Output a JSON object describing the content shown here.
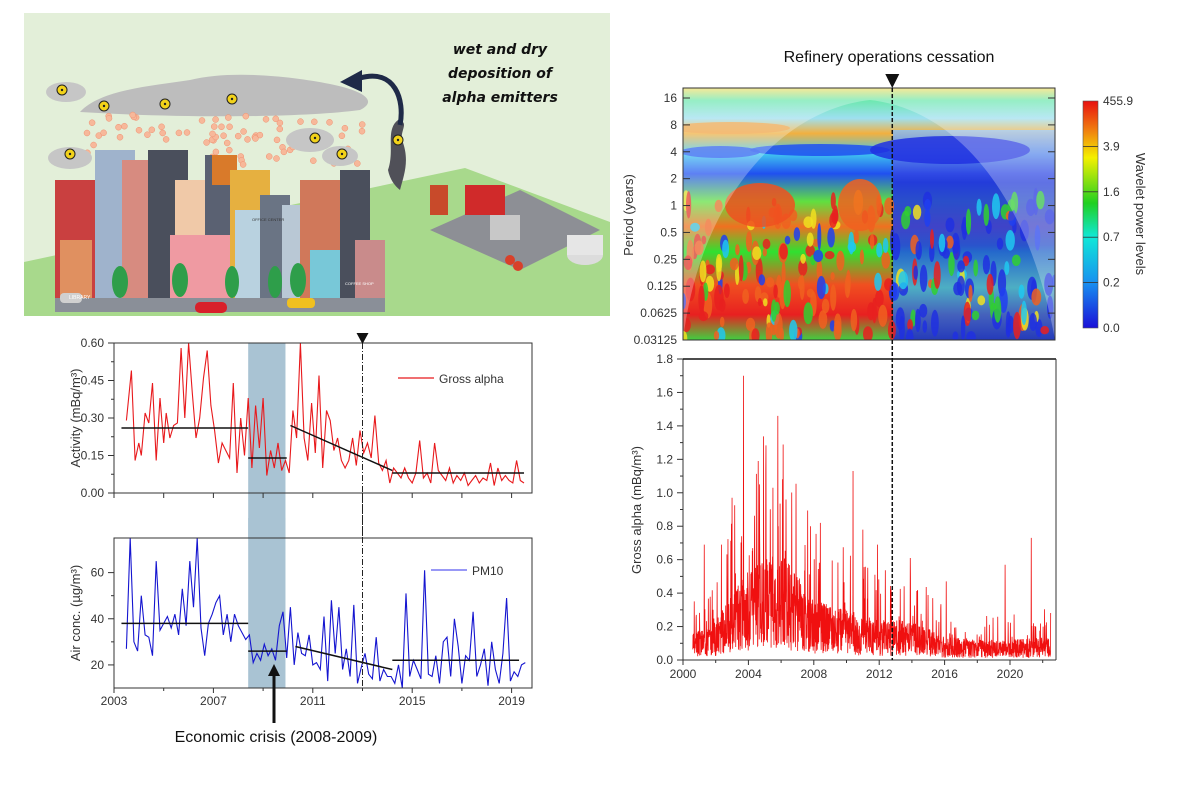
{
  "illustration": {
    "caption_lines": [
      "wet and dry",
      "deposition of",
      "alpha emitters"
    ],
    "sign_labels": [
      "LIBRARY",
      "OFFICE CENTER",
      "COFFEE SHOP"
    ]
  },
  "annotations": {
    "economic_crisis": "Economic crisis (2008-2009)",
    "refinery": "Refinery operations cessation"
  },
  "chart_data": [
    {
      "id": "gross-alpha-monthly",
      "type": "line",
      "title": "",
      "xlabel": "",
      "ylabel": "Activity (mBq/m³)",
      "xlim": [
        2003,
        2019.8
      ],
      "ylim": [
        0,
        0.6
      ],
      "yticks": [
        "0.00",
        "0.15",
        "0.30",
        "0.45",
        "0.60"
      ],
      "ytick_values": [
        0,
        0.15,
        0.3,
        0.45,
        0.6
      ],
      "xticks_shown": false,
      "xtick_values": [
        2003,
        2005,
        2007,
        2009,
        2011,
        2013,
        2015,
        2017,
        2019
      ],
      "legend": {
        "label": "Gross alpha",
        "placement": "top-right"
      },
      "color": "#e8191c",
      "series": [
        {
          "name": "Gross alpha",
          "x": [
            2003.5,
            2003.7,
            2003.85,
            2004.0,
            2004.1,
            2004.25,
            2004.4,
            2004.55,
            2004.7,
            2004.85,
            2005.0,
            2005.1,
            2005.25,
            2005.4,
            2005.55,
            2005.7,
            2005.85,
            2006.0,
            2006.15,
            2006.3,
            2006.45,
            2006.6,
            2006.75,
            2006.9,
            2007.05,
            2007.2,
            2007.35,
            2007.5,
            2007.65,
            2007.8,
            2007.95,
            2008.1,
            2008.25,
            2008.4,
            2008.55,
            2008.7,
            2008.85,
            2009.0,
            2009.15,
            2009.3,
            2009.45,
            2009.6,
            2009.75,
            2009.9,
            2010.05,
            2010.2,
            2010.35,
            2010.5,
            2010.65,
            2010.8,
            2010.95,
            2011.1,
            2011.25,
            2011.4,
            2011.55,
            2011.7,
            2011.85,
            2012.0,
            2012.15,
            2012.3,
            2012.45,
            2012.6,
            2012.75,
            2012.9,
            2013.05,
            2013.2,
            2013.35,
            2013.5,
            2013.65,
            2013.8,
            2013.95,
            2014.1,
            2014.25,
            2014.4,
            2014.55,
            2014.7,
            2014.85,
            2015.0,
            2015.15,
            2015.3,
            2015.45,
            2015.6,
            2015.75,
            2015.9,
            2016.05,
            2016.2,
            2016.35,
            2016.5,
            2016.65,
            2016.8,
            2016.95,
            2017.1,
            2017.25,
            2017.4,
            2017.55,
            2017.7,
            2017.85,
            2018.0,
            2018.15,
            2018.3,
            2018.45,
            2018.6,
            2018.75,
            2018.9,
            2019.05,
            2019.2,
            2019.35,
            2019.5
          ],
          "values": [
            0.29,
            0.49,
            0.13,
            0.2,
            0.15,
            0.32,
            0.28,
            0.44,
            0.13,
            0.38,
            0.2,
            0.32,
            0.22,
            0.27,
            0.28,
            0.58,
            0.3,
            0.6,
            0.4,
            0.22,
            0.3,
            0.46,
            0.57,
            0.35,
            0.25,
            0.12,
            0.2,
            0.17,
            0.14,
            0.44,
            0.08,
            0.3,
            0.15,
            0.38,
            0.1,
            0.35,
            0.18,
            0.38,
            0.07,
            0.17,
            0.1,
            0.2,
            0.09,
            0.13,
            0.08,
            0.33,
            0.22,
            0.6,
            0.22,
            0.13,
            0.36,
            0.16,
            0.47,
            0.1,
            0.33,
            0.29,
            0.17,
            0.22,
            0.13,
            0.1,
            0.13,
            0.22,
            0.11,
            0.25,
            0.16,
            0.2,
            0.14,
            0.31,
            0.12,
            0.09,
            0.13,
            0.04,
            0.1,
            0.08,
            0.06,
            0.1,
            0.06,
            0.04,
            0.08,
            0.21,
            0.06,
            0.08,
            0.04,
            0.2,
            0.09,
            0.07,
            0.05,
            0.1,
            0.04,
            0.07,
            0.05,
            0.08,
            0.03,
            0.05,
            0.07,
            0.04,
            0.06,
            0.05,
            0.12,
            0.03,
            0.1,
            0.05,
            0.07,
            0.05,
            0.04,
            0.13,
            0.05,
            0.04
          ]
        }
      ],
      "trend_lines": [
        {
          "x": [
            2003.3,
            2008.4
          ],
          "y": [
            0.26,
            0.26
          ]
        },
        {
          "x": [
            2008.4,
            2009.95
          ],
          "y": [
            0.14,
            0.14
          ]
        },
        {
          "x": [
            2010.1,
            2014.2
          ],
          "y": [
            0.27,
            0.09
          ]
        },
        {
          "x": [
            2014.2,
            2019.5
          ],
          "y": [
            0.08,
            0.08
          ]
        }
      ],
      "shaded_band": {
        "x": [
          2008.4,
          2009.9
        ],
        "color": "#a9c3d3"
      },
      "event_line": {
        "x": 2013.0,
        "style": "dash-dot",
        "marker": "down-triangle"
      }
    },
    {
      "id": "pm10-monthly",
      "type": "line",
      "title": "",
      "xlabel": "",
      "ylabel": "Air conc. (µg/m³)",
      "xlim": [
        2003,
        2019.8
      ],
      "ylim": [
        10,
        75
      ],
      "yticks": [
        "20",
        "40",
        "60"
      ],
      "ytick_values": [
        20,
        40,
        60
      ],
      "xticks": [
        "2003",
        "2007",
        "2011",
        "2015",
        "2019"
      ],
      "xtick_values": [
        2003,
        2007,
        2011,
        2015,
        2019
      ],
      "legend": {
        "label": "PM10",
        "placement": "top-right"
      },
      "color": "#1515d0",
      "series": [
        {
          "name": "PM10",
          "x": [
            2003.5,
            2003.65,
            2003.8,
            2003.95,
            2004.1,
            2004.25,
            2004.4,
            2004.55,
            2004.7,
            2004.85,
            2005.0,
            2005.15,
            2005.3,
            2005.45,
            2005.6,
            2005.75,
            2005.9,
            2006.05,
            2006.2,
            2006.35,
            2006.5,
            2006.65,
            2006.8,
            2006.95,
            2007.1,
            2007.25,
            2007.4,
            2007.55,
            2007.7,
            2007.85,
            2008.0,
            2008.15,
            2008.3,
            2008.45,
            2008.6,
            2008.75,
            2008.9,
            2009.05,
            2009.2,
            2009.35,
            2009.5,
            2009.65,
            2009.8,
            2009.95,
            2010.1,
            2010.25,
            2010.4,
            2010.55,
            2010.7,
            2010.85,
            2011.0,
            2011.15,
            2011.3,
            2011.45,
            2011.6,
            2011.75,
            2011.9,
            2012.05,
            2012.2,
            2012.35,
            2012.5,
            2012.65,
            2012.8,
            2012.95,
            2013.1,
            2013.25,
            2013.4,
            2013.55,
            2013.7,
            2013.85,
            2014.0,
            2014.15,
            2014.3,
            2014.45,
            2014.6,
            2014.75,
            2014.9,
            2015.05,
            2015.2,
            2015.35,
            2015.5,
            2015.65,
            2015.8,
            2015.95,
            2016.1,
            2016.25,
            2016.4,
            2016.55,
            2016.7,
            2016.85,
            2017.0,
            2017.15,
            2017.3,
            2017.45,
            2017.6,
            2017.75,
            2017.9,
            2018.05,
            2018.2,
            2018.35,
            2018.5,
            2018.65,
            2018.8,
            2018.95,
            2019.1,
            2019.25,
            2019.4,
            2019.55
          ],
          "values": [
            27,
            75,
            30,
            26,
            50,
            33,
            32,
            24,
            65,
            35,
            38,
            41,
            36,
            42,
            33,
            53,
            37,
            65,
            45,
            75,
            36,
            24,
            38,
            42,
            47,
            50,
            33,
            42,
            30,
            42,
            37,
            34,
            31,
            33,
            21,
            25,
            22,
            29,
            24,
            27,
            22,
            37,
            43,
            23,
            45,
            20,
            34,
            25,
            24,
            33,
            20,
            21,
            18,
            41,
            13,
            48,
            25,
            45,
            18,
            27,
            15,
            46,
            12,
            19,
            25,
            16,
            14,
            32,
            13,
            18,
            15,
            15,
            12,
            20,
            10,
            51,
            15,
            22,
            18,
            14,
            61,
            16,
            15,
            24,
            12,
            30,
            32,
            15,
            40,
            28,
            12,
            24,
            22,
            43,
            15,
            20,
            27,
            11,
            30,
            18,
            12,
            25,
            49,
            13,
            17,
            15,
            20,
            21
          ]
        }
      ],
      "trend_lines": [
        {
          "x": [
            2003.3,
            2008.4
          ],
          "y": [
            38,
            38
          ]
        },
        {
          "x": [
            2008.4,
            2009.95
          ],
          "y": [
            26,
            26
          ]
        },
        {
          "x": [
            2010.3,
            2014.2
          ],
          "y": [
            28,
            18
          ]
        },
        {
          "x": [
            2014.2,
            2019.3
          ],
          "y": [
            22,
            22
          ]
        }
      ],
      "shaded_band": {
        "x": [
          2008.4,
          2009.9
        ],
        "color": "#a9c3d3"
      },
      "event_line": {
        "x": 2013.0,
        "style": "dash-dot"
      }
    },
    {
      "id": "wavelet-power-spectrum",
      "type": "heatmap",
      "title": "Refinery operations cessation",
      "xlabel": "",
      "ylabel": "Period (years)",
      "xlim": [
        2000.5,
        2022.6
      ],
      "yticks": [
        "16",
        "8",
        "4",
        "2",
        "1",
        "0.5",
        "0.25",
        "0.125",
        "0.0625",
        "0.03125"
      ],
      "ytick_values": [
        16,
        8,
        4,
        2,
        1,
        0.5,
        0.25,
        0.125,
        0.0625,
        0.03125
      ],
      "colorbar": {
        "label": "Wavelet power levels",
        "ticks": [
          "0.0",
          "0.2",
          "0.7",
          "1.6",
          "3.9",
          "455.9"
        ],
        "colors": [
          "#1a10d8",
          "#1890f0",
          "#10e8d8",
          "#20d020",
          "#f4f000",
          "#f08010",
          "#e81010"
        ]
      },
      "event_line": {
        "x": 2012.8,
        "style": "dashed",
        "marker": "down-triangle"
      }
    },
    {
      "id": "gross-alpha-daily",
      "type": "line",
      "title": "",
      "xlabel": "",
      "ylabel": "Gross alpha (mBq/m³)",
      "xlim": [
        2000,
        2023
      ],
      "ylim": [
        0,
        1.8
      ],
      "yticks": [
        "0.0",
        "0.2",
        "0.4",
        "0.6",
        "0.8",
        "1.0",
        "1.2",
        "1.4",
        "1.6",
        "1.8"
      ],
      "ytick_values": [
        0,
        0.2,
        0.4,
        0.6,
        0.8,
        1.0,
        1.2,
        1.4,
        1.6,
        1.8
      ],
      "xticks": [
        "2000",
        "2004",
        "2008",
        "2012",
        "2016",
        "2020"
      ],
      "xtick_values": [
        2000,
        2004,
        2008,
        2012,
        2016,
        2020
      ],
      "color": "#f01010",
      "peaks": [
        {
          "x": 2001.3,
          "y": 0.69
        },
        {
          "x": 2002.35,
          "y": 0.69
        },
        {
          "x": 2003.0,
          "y": 0.97
        },
        {
          "x": 2003.7,
          "y": 1.7
        },
        {
          "x": 2004.6,
          "y": 1.19
        },
        {
          "x": 2005.5,
          "y": 1.03
        },
        {
          "x": 2005.8,
          "y": 1.46
        },
        {
          "x": 2006.3,
          "y": 0.96
        },
        {
          "x": 2007.8,
          "y": 0.8
        },
        {
          "x": 2008.4,
          "y": 0.82
        },
        {
          "x": 2010.4,
          "y": 1.13
        },
        {
          "x": 2011.0,
          "y": 0.78
        },
        {
          "x": 2011.9,
          "y": 0.69
        },
        {
          "x": 2013.9,
          "y": 0.61
        },
        {
          "x": 2016.1,
          "y": 0.47
        },
        {
          "x": 2019.7,
          "y": 0.57
        },
        {
          "x": 2021.3,
          "y": 0.73
        }
      ],
      "baseline_envelope": [
        {
          "x": 2000.6,
          "y": 0.08
        },
        {
          "x": 2002,
          "y": 0.12
        },
        {
          "x": 2004,
          "y": 0.28
        },
        {
          "x": 2006,
          "y": 0.32
        },
        {
          "x": 2008,
          "y": 0.18
        },
        {
          "x": 2010,
          "y": 0.15
        },
        {
          "x": 2012,
          "y": 0.12
        },
        {
          "x": 2014,
          "y": 0.12
        },
        {
          "x": 2016,
          "y": 0.07
        },
        {
          "x": 2018,
          "y": 0.06
        },
        {
          "x": 2020,
          "y": 0.06
        },
        {
          "x": 2022.5,
          "y": 0.07
        }
      ],
      "event_line": {
        "x": 2012.8,
        "style": "dashed"
      }
    }
  ]
}
